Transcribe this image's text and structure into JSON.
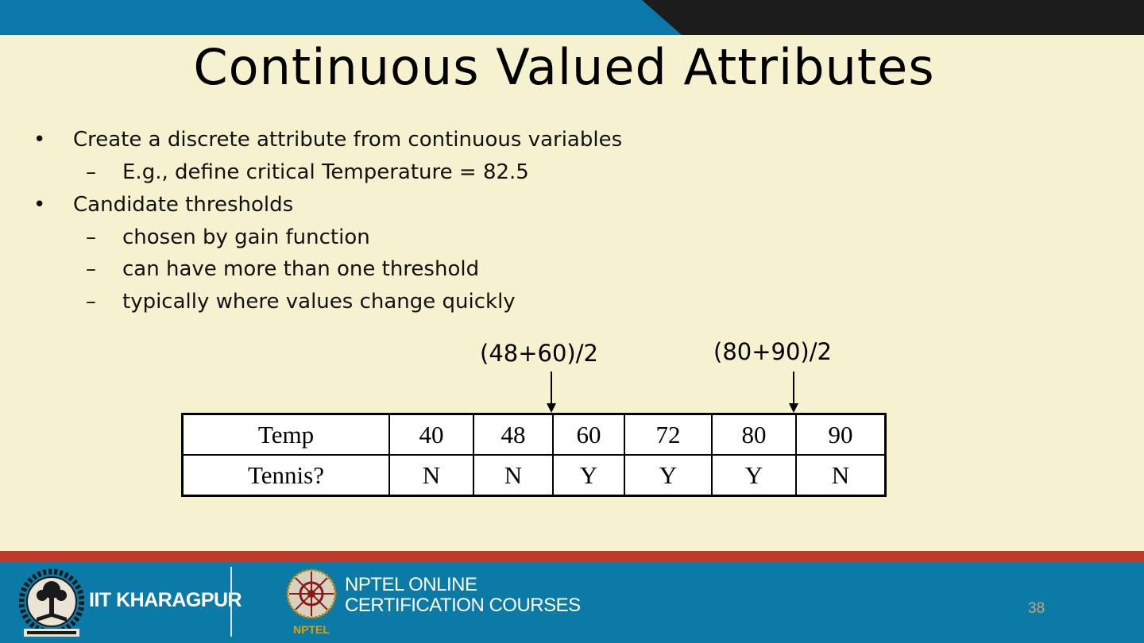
{
  "slide": {
    "title": "Continuous Valued Attributes",
    "page_number": "38"
  },
  "bullets": [
    {
      "text": "Create a discrete attribute from continuous variables",
      "subs": [
        "E.g., define critical Temperature = 82.5"
      ]
    },
    {
      "text": "Candidate thresholds",
      "subs": [
        "chosen by gain function",
        "can have more than one threshold",
        "typically where values change quickly"
      ]
    }
  ],
  "bullet_marker": "•",
  "sub_marker": "–",
  "thresholds": [
    "(48+60)/2",
    "(80+90)/2"
  ],
  "table": {
    "row1_label": "Temp",
    "row2_label": "Tennis?",
    "temps": [
      "40",
      "48",
      "60",
      "72",
      "80",
      "90"
    ],
    "tennis": [
      "N",
      "N",
      "Y",
      "Y",
      "Y",
      "N"
    ]
  },
  "footer": {
    "org_name": "IIT KHARAGPUR",
    "program_line1": "NPTEL ONLINE",
    "program_line2": "CERTIFICATION COURSES",
    "logo_caption": "NPTEL"
  },
  "colors": {
    "background": "#f6f1cf",
    "top_bar": "#0a78a8",
    "top_bar_dark": "#1c1c1c",
    "footer": "#0b7aa6",
    "footer_stripe": "#c0392b"
  }
}
